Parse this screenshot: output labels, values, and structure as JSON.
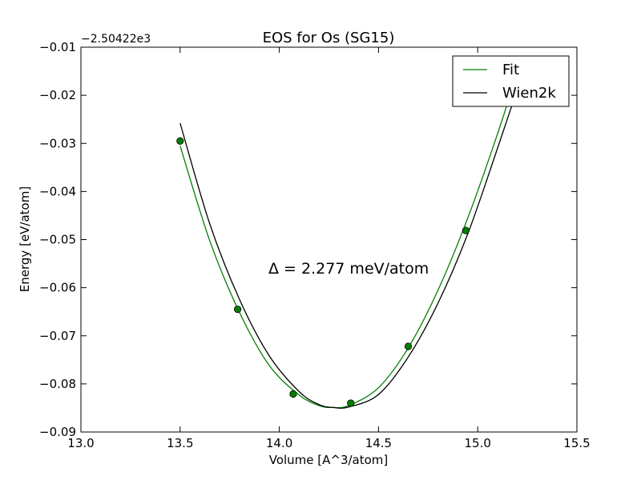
{
  "chart_data": {
    "type": "line",
    "title": "EOS for Os (SG15)",
    "xlabel": "Volume [A^3/atom]",
    "ylabel": "Energy [eV/atom]",
    "offset_label": "−2.50422e3",
    "annotation": "Δ = 2.277 meV/atom",
    "xlim": [
      13.0,
      15.5
    ],
    "ylim": [
      -0.09,
      -0.01
    ],
    "x_ticks": [
      13.0,
      13.5,
      14.0,
      14.5,
      15.0,
      15.5
    ],
    "x_tick_labels": [
      "13.0",
      "13.5",
      "14.0",
      "14.5",
      "15.0",
      "15.5"
    ],
    "y_ticks": [
      -0.01,
      -0.02,
      -0.03,
      -0.04,
      -0.05,
      -0.06,
      -0.07,
      -0.08,
      -0.09
    ],
    "y_tick_labels": [
      "−0.01",
      "−0.02",
      "−0.03",
      "−0.04",
      "−0.05",
      "−0.06",
      "−0.07",
      "−0.08",
      "−0.09"
    ],
    "grid": false,
    "legend_position": "top-right",
    "series": [
      {
        "name": "Fit",
        "kind": "line",
        "color": "#008000",
        "x": [
          13.5,
          13.65,
          13.8,
          13.95,
          14.1,
          14.2,
          14.27,
          14.35,
          14.5,
          14.65,
          14.8,
          14.95,
          15.1,
          15.22
        ],
        "y": [
          -0.0305,
          -0.0503,
          -0.0652,
          -0.0762,
          -0.0823,
          -0.0845,
          -0.0849,
          -0.0845,
          -0.0808,
          -0.0725,
          -0.0605,
          -0.0455,
          -0.028,
          -0.0125
        ]
      },
      {
        "name": "Wien2k",
        "kind": "line",
        "color": "#000000",
        "x": [
          13.5,
          13.65,
          13.8,
          13.95,
          14.1,
          14.2,
          14.27,
          14.35,
          14.5,
          14.65,
          14.8,
          14.95,
          15.1,
          15.25
        ],
        "y": [
          -0.0258,
          -0.0468,
          -0.0625,
          -0.0742,
          -0.0816,
          -0.0843,
          -0.0849,
          -0.0848,
          -0.0822,
          -0.0744,
          -0.0632,
          -0.0488,
          -0.031,
          -0.0125
        ]
      },
      {
        "name": "",
        "kind": "scatter",
        "color": "#008000",
        "x": [
          13.5,
          13.79,
          14.07,
          14.36,
          14.65,
          14.94
        ],
        "y": [
          -0.0295,
          -0.0645,
          -0.0821,
          -0.084,
          -0.0722,
          -0.0481
        ]
      }
    ]
  }
}
